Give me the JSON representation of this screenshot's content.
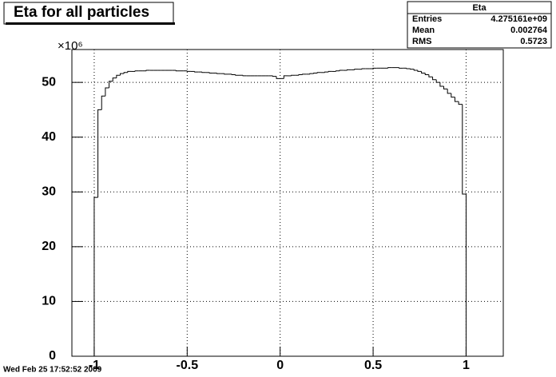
{
  "chart_data": {
    "type": "histogram",
    "title": "Eta for all particles",
    "y_multiplier": "×10⁶",
    "footer": "Wed Feb 25 17:52:52 2009",
    "stats": {
      "title": "Eta",
      "rows": [
        {
          "name": "Entries",
          "value": "4.275161e+09"
        },
        {
          "name": "Mean",
          "value": "0.002764"
        },
        {
          "name": "RMS",
          "value": "0.5723"
        }
      ]
    },
    "bins": [
      -1,
      -0.98,
      -0.96,
      -0.94,
      -0.92,
      -0.9,
      -0.88,
      -0.86,
      -0.84,
      -0.82,
      -0.8,
      -0.78,
      -0.76,
      -0.74,
      -0.72,
      -0.7,
      -0.68,
      -0.66,
      -0.64,
      -0.62,
      -0.6,
      -0.58,
      -0.56,
      -0.54,
      -0.52,
      -0.5,
      -0.48,
      -0.46,
      -0.44,
      -0.42,
      -0.4,
      -0.38,
      -0.36,
      -0.34,
      -0.32,
      -0.3,
      -0.28,
      -0.26,
      -0.24,
      -0.22,
      -0.2,
      -0.18,
      -0.16,
      -0.14,
      -0.12,
      -0.1,
      -0.08,
      -0.06,
      -0.04,
      -0.02,
      0,
      0.02,
      0.04,
      0.06,
      0.08,
      0.1,
      0.12,
      0.14,
      0.16,
      0.18,
      0.2,
      0.22,
      0.24,
      0.26,
      0.28,
      0.3,
      0.32,
      0.34,
      0.36,
      0.38,
      0.4,
      0.42,
      0.44,
      0.46,
      0.48,
      0.5,
      0.52,
      0.54,
      0.56,
      0.58,
      0.6,
      0.62,
      0.64,
      0.66,
      0.68,
      0.7,
      0.72,
      0.74,
      0.76,
      0.78,
      0.8,
      0.82,
      0.84,
      0.86,
      0.88,
      0.9,
      0.92,
      0.94,
      0.96,
      0.98,
      1
    ],
    "values": [
      29,
      45,
      47.5,
      49,
      50.2,
      50.8,
      51.3,
      51.6,
      51.8,
      52.0,
      52.0,
      52.1,
      52.1,
      52.1,
      52.2,
      52.2,
      52.2,
      52.2,
      52.2,
      52.2,
      52.2,
      52.2,
      52.1,
      52.1,
      52.1,
      52.0,
      52.0,
      51.9,
      51.9,
      51.8,
      51.8,
      51.7,
      51.7,
      51.6,
      51.6,
      51.5,
      51.5,
      51.4,
      51.3,
      51.3,
      51.2,
      51.2,
      51.2,
      51.2,
      51.2,
      51.2,
      51.2,
      51.2,
      51.1,
      50.7,
      50.7,
      51.2,
      51.2,
      51.3,
      51.3,
      51.4,
      51.5,
      51.5,
      51.6,
      51.7,
      51.8,
      51.8,
      51.9,
      52.0,
      52.0,
      52.1,
      52.2,
      52.2,
      52.3,
      52.3,
      52.4,
      52.4,
      52.5,
      52.5,
      52.5,
      52.6,
      52.6,
      52.6,
      52.6,
      52.7,
      52.7,
      52.7,
      52.6,
      52.6,
      52.5,
      52.4,
      52.2,
      52.0,
      51.7,
      51.4,
      51.0,
      50.5,
      50.0,
      49.3,
      48.8,
      48.0,
      47.3,
      46.5,
      46.0,
      29.6
    ],
    "color": "#000000",
    "xlim": [
      -1.12,
      1.2
    ],
    "ylim": [
      0,
      56
    ],
    "xticks": [
      -1,
      -0.5,
      0,
      0.5,
      1
    ],
    "yticks": [
      0,
      10,
      20,
      30,
      40,
      50
    ],
    "grid": true
  }
}
